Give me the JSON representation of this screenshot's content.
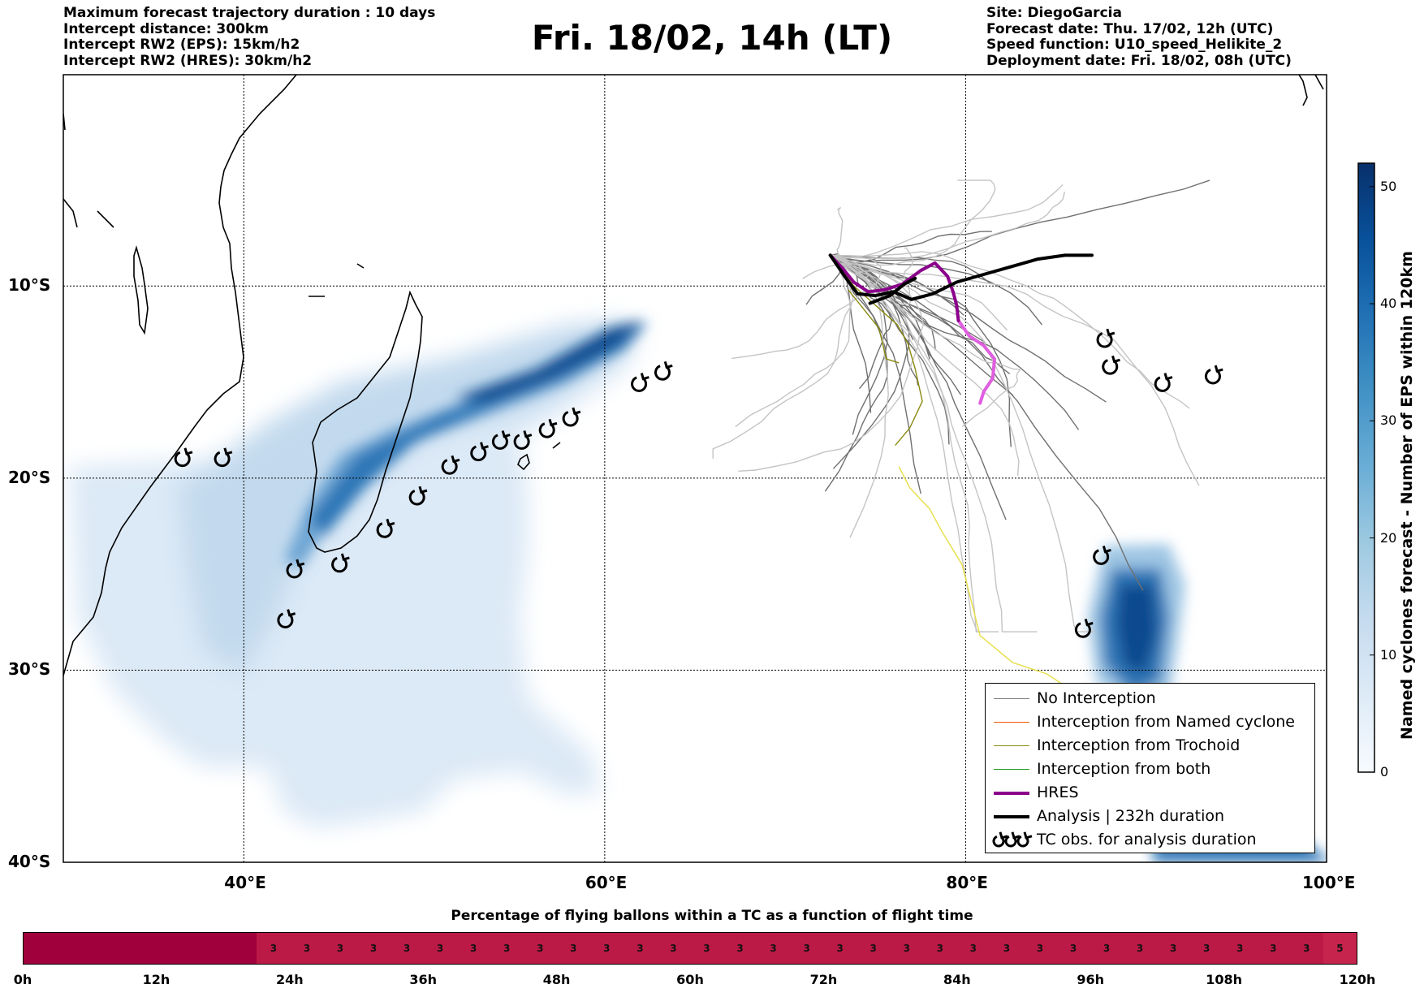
{
  "header": {
    "left_lines": [
      "Maximum forecast trajectory duration : 10 days",
      "Intercept distance: 300km",
      "Intercept RW2 (EPS):  15km/h2",
      "Intercept RW2 (HRES): 30km/h2"
    ],
    "title": "Fri. 18/02, 14h (LT)",
    "right_lines": [
      "Site: DiegoGarcia",
      "Forecast date: Thu. 17/02, 12h (UTC)",
      "Speed function: U10_speed_Helikite_2",
      "Deployment date: Fri. 18/02, 08h (UTC)"
    ]
  },
  "map": {
    "lon_range": [
      30,
      100
    ],
    "lat_range": [
      -40,
      1
    ],
    "lat_labels": [
      "10°S",
      "20°S",
      "30°S",
      "40°S"
    ],
    "lat_values": [
      -10,
      -20,
      -30,
      -40
    ],
    "lon_labels": [
      "40°E",
      "60°E",
      "80°E",
      "100°E"
    ],
    "lon_values": [
      40,
      60,
      80,
      100
    ],
    "tc_observations": [
      [
        36.6,
        -19.0
      ],
      [
        38.8,
        -19.0
      ],
      [
        42.8,
        -24.8
      ],
      [
        42.3,
        -27.4
      ],
      [
        45.3,
        -24.5
      ],
      [
        47.8,
        -22.7
      ],
      [
        49.6,
        -21.0
      ],
      [
        51.4,
        -19.4
      ],
      [
        53.0,
        -18.7
      ],
      [
        54.2,
        -18.1
      ],
      [
        55.4,
        -18.1
      ],
      [
        56.8,
        -17.5
      ],
      [
        58.1,
        -16.9
      ],
      [
        61.9,
        -15.1
      ],
      [
        63.2,
        -14.5
      ],
      [
        87.7,
        -12.8
      ],
      [
        88.0,
        -14.2
      ],
      [
        90.9,
        -15.1
      ],
      [
        93.7,
        -14.7
      ],
      [
        87.5,
        -24.1
      ],
      [
        86.5,
        -27.9
      ]
    ],
    "analysis_track": [
      [
        72.5,
        -8.4
      ],
      [
        73.3,
        -9.5
      ],
      [
        74.0,
        -10.4
      ],
      [
        75.0,
        -10.5
      ],
      [
        76.0,
        -10.3
      ],
      [
        77.0,
        -10.7
      ],
      [
        78.2,
        -10.4
      ],
      [
        79.5,
        -9.8
      ],
      [
        81.0,
        -9.4
      ],
      [
        82.5,
        -9.0
      ],
      [
        84.0,
        -8.6
      ],
      [
        85.5,
        -8.4
      ],
      [
        87.0,
        -8.4
      ]
    ],
    "analysis_start": [
      [
        74.7,
        -10.9
      ],
      [
        75.8,
        -10.5
      ],
      [
        76.6,
        -9.9
      ],
      [
        77.2,
        -9.6
      ]
    ],
    "hres_track": [
      [
        72.5,
        -8.4
      ],
      [
        73.2,
        -9.1
      ],
      [
        73.8,
        -9.8
      ],
      [
        74.6,
        -10.3
      ],
      [
        75.5,
        -10.2
      ],
      [
        76.5,
        -9.9
      ],
      [
        77.5,
        -9.2
      ],
      [
        78.3,
        -8.8
      ],
      [
        79.0,
        -9.5
      ],
      [
        79.3,
        -10.3
      ],
      [
        79.5,
        -11.0
      ],
      [
        79.6,
        -11.8
      ]
    ],
    "hres_tail": [
      [
        79.6,
        -11.8
      ],
      [
        80.2,
        -12.6
      ],
      [
        81.0,
        -13.1
      ],
      [
        81.6,
        -13.8
      ],
      [
        81.5,
        -14.8
      ],
      [
        81.0,
        -15.5
      ],
      [
        80.8,
        -16.1
      ]
    ],
    "trochoid_tracks": [
      [
        [
          72.5,
          -8.4
        ],
        [
          73.8,
          -10.0
        ],
        [
          75.0,
          -11.0
        ],
        [
          76.2,
          -12.0
        ],
        [
          76.8,
          -13.0
        ],
        [
          77.2,
          -14.3
        ],
        [
          77.6,
          -16.0
        ],
        [
          76.9,
          -17.4
        ],
        [
          76.1,
          -18.3
        ]
      ],
      [
        [
          73.5,
          -10.2
        ],
        [
          75.2,
          -12.2
        ],
        [
          75.6,
          -13.8
        ],
        [
          76.3,
          -14.0
        ]
      ]
    ],
    "yellow_track": [
      [
        76.3,
        -19.4
      ],
      [
        76.9,
        -20.5
      ],
      [
        78.0,
        -21.6
      ],
      [
        78.7,
        -22.8
      ],
      [
        79.8,
        -24.5
      ],
      [
        80.2,
        -26.0
      ],
      [
        80.8,
        -28.2
      ],
      [
        82.6,
        -29.6
      ],
      [
        84.5,
        -30.2
      ],
      [
        85.8,
        -31.0
      ],
      [
        87.4,
        -31.5
      ]
    ],
    "colors": {
      "no_interception": "#707070",
      "no_interception_light": "#c4c4c4",
      "named_cyclone": "#f05a00",
      "trochoid": "#8a8a10",
      "both": "#1e9a1e",
      "hres": "#8b008b",
      "hres_tail": "#e05ee0",
      "analysis": "#000000",
      "yellow": "#e8e050"
    }
  },
  "colorbar": {
    "title": "Named cyclones forecast - Number of EPS within 120km",
    "ticks": [
      "0",
      "10",
      "20",
      "30",
      "40",
      "50"
    ],
    "tick_values": [
      0,
      10,
      20,
      30,
      40,
      50
    ],
    "max": 52,
    "colors": [
      "#f7fbff",
      "#deebf7",
      "#c6dbef",
      "#9ecae1",
      "#6baed6",
      "#4292c6",
      "#2171b5",
      "#08519c",
      "#08306b"
    ]
  },
  "legend": {
    "items": [
      {
        "label": "No Interception",
        "color": "#808080",
        "width": 1.5
      },
      {
        "label": "Interception from Named cyclone",
        "color": "#f05a00",
        "width": 1.5
      },
      {
        "label": "Interception from Trochoid",
        "color": "#8a8a10",
        "width": 1.5
      },
      {
        "label": "Interception from both",
        "color": "#1e9a1e",
        "width": 1.5
      },
      {
        "label": "HRES",
        "color": "#8b008b",
        "width": 4
      },
      {
        "label": "Analysis | 232h duration",
        "color": "#000000",
        "width": 4
      },
      {
        "label": "TC obs. for analysis duration",
        "color": "",
        "width": 0
      }
    ]
  },
  "flight_bar": {
    "title": "Percentage of flying ballons within a TC as a function of flight time",
    "ticks": [
      "0h",
      "12h",
      "24h",
      "36h",
      "48h",
      "60h",
      "72h",
      "84h",
      "96h",
      "108h",
      "120h"
    ],
    "tick_hours": [
      0,
      12,
      24,
      36,
      48,
      60,
      72,
      84,
      96,
      108,
      120
    ],
    "max_hours": 120,
    "segments": [
      {
        "hours": 21,
        "label": "",
        "color": "#a0003c"
      },
      {
        "hours": 96,
        "label": "3",
        "color": "#bc1a46",
        "count": 32
      },
      {
        "hours": 3,
        "label": "5",
        "color": "#c6244c",
        "count": 1
      }
    ]
  }
}
